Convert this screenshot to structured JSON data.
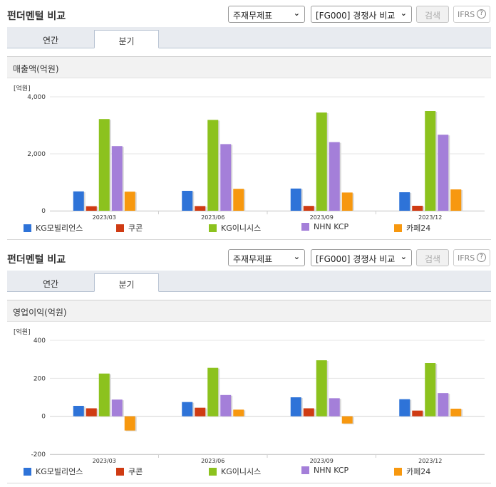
{
  "panels": [
    {
      "title": "펀더멘털 비교",
      "select_statement": "주재무제표",
      "select_compare": "[FG000] 경쟁사 비교",
      "search_label": "검색",
      "ifrs_label": "IFRS",
      "ifrs_help": "?",
      "tabs": [
        "연간",
        "분기"
      ],
      "active_tab": "분기",
      "metric_label": "매출액(억원)",
      "chart_data": {
        "type": "bar",
        "unit_label": "[억원]",
        "categories": [
          "2023/03",
          "2023/06",
          "2023/09",
          "2023/12"
        ],
        "y_ticks": [
          "4,000",
          "2,000",
          "0"
        ],
        "ylim": [
          0,
          4000
        ],
        "series": [
          {
            "name": "KG모빌리언스",
            "color": "#2e73d8",
            "values": [
              680,
              700,
              780,
              650
            ]
          },
          {
            "name": "쿠콘",
            "color": "#cf3b13",
            "values": [
              160,
              165,
              170,
              175
            ]
          },
          {
            "name": "KG이니시스",
            "color": "#8cc21e",
            "values": [
              3220,
              3190,
              3450,
              3500
            ]
          },
          {
            "name": "NHN KCP",
            "color": "#a47fd9",
            "values": [
              2270,
              2340,
              2410,
              2670
            ]
          },
          {
            "name": "카페24",
            "color": "#f7980f",
            "values": [
              670,
              770,
              640,
              750
            ]
          }
        ],
        "grid": true,
        "legend": "bottom"
      }
    },
    {
      "title": "펀더멘털 비교",
      "select_statement": "주재무제표",
      "select_compare": "[FG000] 경쟁사 비교",
      "search_label": "검색",
      "ifrs_label": "IFRS",
      "ifrs_help": "?",
      "tabs": [
        "연간",
        "분기"
      ],
      "active_tab": "분기",
      "metric_label": "영업이익(억원)",
      "chart_data": {
        "type": "bar",
        "unit_label": "[억원]",
        "categories": [
          "2023/03",
          "2023/06",
          "2023/09",
          "2023/12"
        ],
        "y_ticks": [
          "400",
          "200",
          "0",
          "-200"
        ],
        "ylim": [
          -200,
          400
        ],
        "series": [
          {
            "name": "KG모빌리언스",
            "color": "#2e73d8",
            "values": [
              55,
              75,
              100,
              90
            ]
          },
          {
            "name": "쿠콘",
            "color": "#cf3b13",
            "values": [
              42,
              45,
              42,
              30
            ]
          },
          {
            "name": "KG이니시스",
            "color": "#8cc21e",
            "values": [
              225,
              255,
              295,
              280
            ]
          },
          {
            "name": "NHN KCP",
            "color": "#a47fd9",
            "values": [
              88,
              112,
              95,
              122
            ]
          },
          {
            "name": "카페24",
            "color": "#f7980f",
            "values": [
              -75,
              35,
              -38,
              40
            ]
          }
        ],
        "grid": true,
        "legend": "bottom"
      }
    }
  ]
}
